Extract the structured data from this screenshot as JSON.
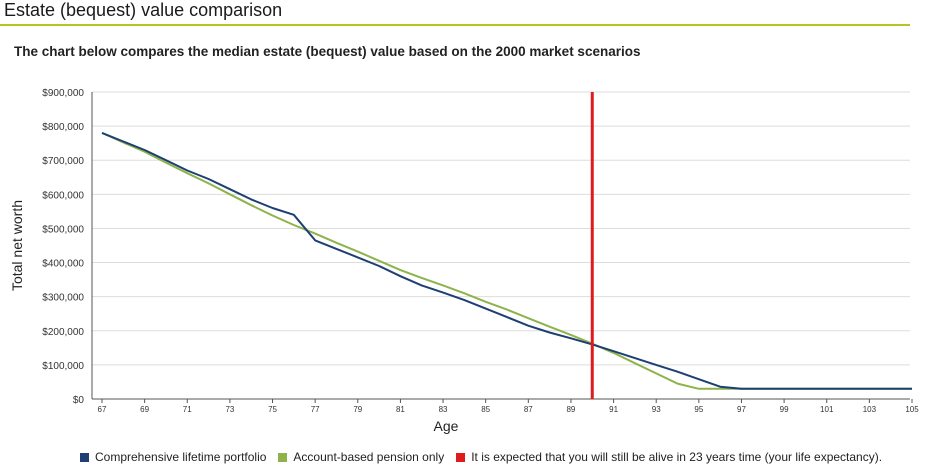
{
  "header": {
    "title": "Estate (bequest) value comparison",
    "subtitle": "The chart below compares the median estate (bequest) value based on the 2000 market scenarios"
  },
  "colors": {
    "accent_rule": "#b9c424",
    "series_blue": "#1d3f73",
    "series_green": "#8db34a",
    "marker_red": "#e01b1b"
  },
  "chart_data": {
    "type": "line",
    "xlabel": "Age",
    "ylabel": "Total net worth",
    "xlim": [
      67,
      105
    ],
    "ylim": [
      0,
      900000
    ],
    "x_ticks": [
      67,
      69,
      71,
      73,
      75,
      77,
      79,
      81,
      83,
      85,
      87,
      89,
      91,
      93,
      95,
      97,
      99,
      101,
      103,
      105
    ],
    "y_ticks": [
      0,
      100000,
      200000,
      300000,
      400000,
      500000,
      600000,
      700000,
      800000,
      900000
    ],
    "y_tick_labels": [
      "$0",
      "$100,000",
      "$200,000",
      "$300,000",
      "$400,000",
      "$500,000",
      "$600,000",
      "$700,000",
      "$800,000",
      "$900,000"
    ],
    "grid": true,
    "legend_position": "bottom",
    "series": [
      {
        "name": "Comprehensive lifetime portfolio",
        "color": "#1d3f73",
        "x": [
          67,
          68,
          69,
          70,
          71,
          72,
          73,
          74,
          75,
          76,
          77,
          78,
          79,
          80,
          81,
          82,
          83,
          84,
          85,
          86,
          87,
          88,
          89,
          90,
          91,
          92,
          93,
          94,
          95,
          96,
          97,
          98,
          99,
          100,
          101,
          102,
          103,
          104,
          105
        ],
        "values": [
          780000,
          755000,
          730000,
          700000,
          670000,
          645000,
          615000,
          585000,
          560000,
          540000,
          465000,
          440000,
          415000,
          390000,
          360000,
          333000,
          312000,
          290000,
          265000,
          240000,
          215000,
          195000,
          178000,
          160000,
          140000,
          120000,
          100000,
          80000,
          58000,
          36000,
          30000,
          30000,
          30000,
          30000,
          30000,
          30000,
          30000,
          30000,
          30000
        ]
      },
      {
        "name": "Account-based pension only",
        "color": "#8db34a",
        "x": [
          67,
          68,
          69,
          70,
          71,
          72,
          73,
          74,
          75,
          76,
          77,
          78,
          79,
          80,
          81,
          82,
          83,
          84,
          85,
          86,
          87,
          88,
          89,
          90,
          91,
          92,
          93,
          94,
          95,
          96,
          97,
          98,
          99,
          100,
          101,
          102,
          103,
          104,
          105
        ],
        "values": [
          780000,
          752000,
          725000,
          693000,
          662000,
          632000,
          600000,
          568000,
          538000,
          510000,
          485000,
          458000,
          432000,
          405000,
          378000,
          355000,
          333000,
          310000,
          285000,
          262000,
          237000,
          212000,
          188000,
          162000,
          135000,
          105000,
          75000,
          45000,
          30000,
          30000,
          30000,
          30000,
          30000,
          30000,
          30000,
          30000,
          30000,
          30000,
          30000
        ]
      }
    ],
    "marker": {
      "name": "It is expected that you will still be alive in 23 years time (your life expectancy).",
      "x": 90,
      "color": "#e01b1b"
    }
  },
  "legend": {
    "items": [
      {
        "label": "Comprehensive lifetime portfolio",
        "color": "#1d3f73"
      },
      {
        "label": "Account-based pension only",
        "color": "#8db34a"
      },
      {
        "label": "It is expected that you will still be alive in 23 years time (your life expectancy).",
        "color": "#e01b1b"
      }
    ]
  }
}
